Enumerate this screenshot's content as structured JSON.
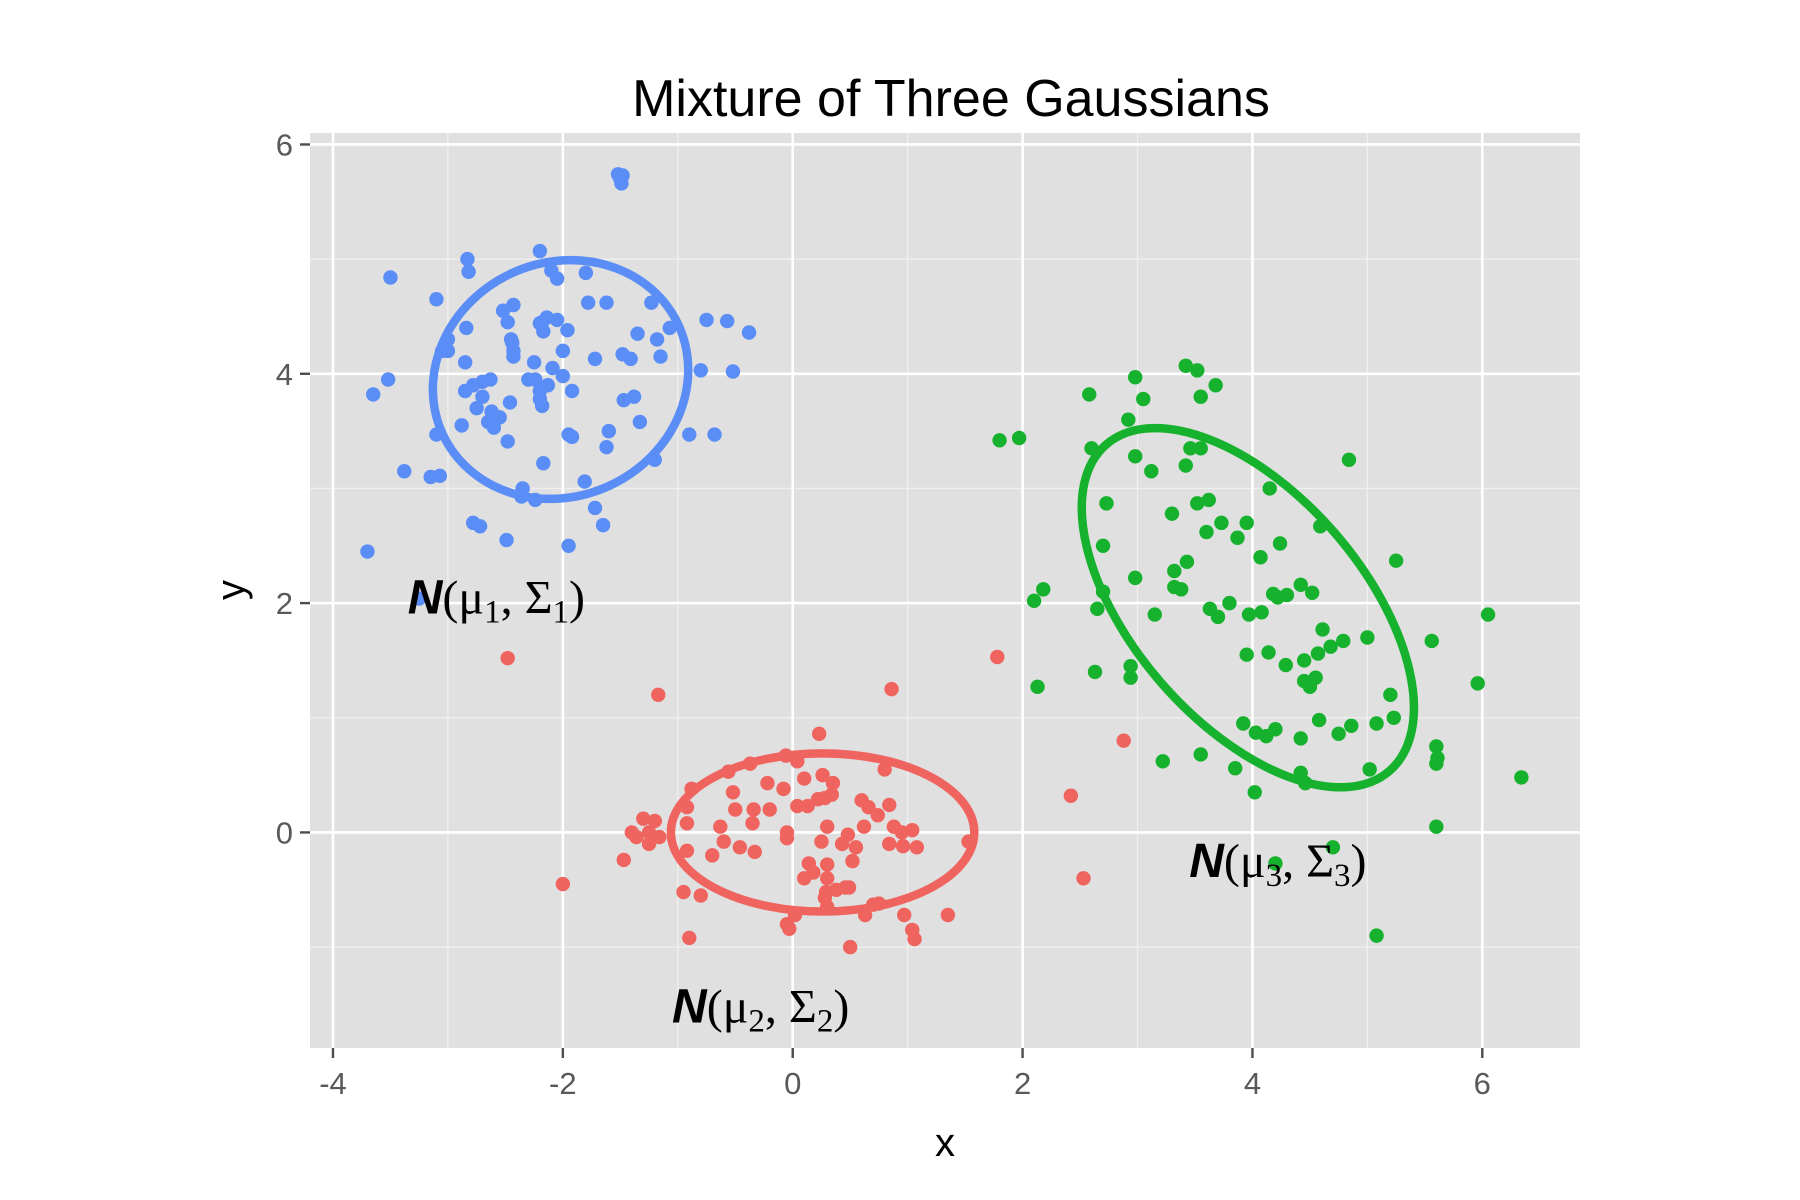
{
  "chart_data": {
    "type": "scatter",
    "title": "Mixture of Three Gaussians",
    "xlabel": "x",
    "ylabel": "y",
    "xlim": [
      -4.2,
      6.85
    ],
    "ylim": [
      -1.88,
      6.1
    ],
    "xticks": [
      -4,
      -2,
      0,
      2,
      4,
      6
    ],
    "xtick_labels": [
      "-4",
      "-2",
      "0",
      "2",
      "4",
      "6"
    ],
    "yticks": [
      0,
      2,
      4,
      6
    ],
    "ytick_labels": [
      "0",
      "2",
      "4",
      "6"
    ],
    "grid": true,
    "legend": "none",
    "colors": {
      "component_1": "#5A8DF5",
      "component_2": "#F0645F",
      "component_3": "#16B22E",
      "panel_background": "#E0E0E0",
      "grid_major": "#FFFFFF"
    },
    "ellipses": [
      {
        "series": "component_1",
        "center": [
          -2.02,
          3.95
        ],
        "semi_axes": [
          1.13,
          1.02
        ],
        "angle_deg": 25
      },
      {
        "series": "component_2",
        "center": [
          0.26,
          0.0
        ],
        "semi_axes": [
          1.32,
          0.69
        ],
        "angle_deg": 0
      },
      {
        "series": "component_3",
        "center": [
          3.96,
          1.96
        ],
        "semi_axes": [
          1.88,
          1.0
        ],
        "angle_deg": -49
      }
    ],
    "annotations": [
      {
        "n": "N",
        "mu": "μ",
        "mu_sub": "1",
        "sigma": "Σ",
        "sigma_sub": "1",
        "x": -3.35,
        "y": 2.05
      },
      {
        "n": "N",
        "mu": "μ",
        "mu_sub": "2",
        "sigma": "Σ",
        "sigma_sub": "2",
        "x": -1.05,
        "y": -1.52
      },
      {
        "n": "N",
        "mu": "μ",
        "mu_sub": "3",
        "sigma": "Σ",
        "sigma_sub": "3",
        "x": 3.45,
        "y": -0.25
      }
    ],
    "series": [
      {
        "id": "component_1",
        "points": [
          [
            -1.5,
            5.7
          ],
          [
            -1.48,
            5.73
          ],
          [
            -1.52,
            5.74
          ],
          [
            -1.49,
            5.66
          ],
          [
            -2.2,
            5.07
          ],
          [
            -2.83,
            5.0
          ],
          [
            -2.82,
            4.89
          ],
          [
            -3.5,
            4.84
          ],
          [
            -2.05,
            4.83
          ],
          [
            -2.1,
            4.9
          ],
          [
            -1.8,
            4.88
          ],
          [
            -1.62,
            4.62
          ],
          [
            -1.78,
            4.62
          ],
          [
            -2.52,
            4.55
          ],
          [
            -2.43,
            4.6
          ],
          [
            -3.1,
            4.65
          ],
          [
            -2.14,
            4.49
          ],
          [
            -2.05,
            4.47
          ],
          [
            -2.18,
            4.45
          ],
          [
            -2.2,
            4.44
          ],
          [
            -2.48,
            4.45
          ],
          [
            -2.45,
            4.3
          ],
          [
            -2.84,
            4.4
          ],
          [
            -3.0,
            4.3
          ],
          [
            -2.17,
            4.37
          ],
          [
            -1.96,
            4.38
          ],
          [
            -2.44,
            4.27
          ],
          [
            -1.35,
            4.35
          ],
          [
            -1.23,
            4.62
          ],
          [
            -1.07,
            4.4
          ],
          [
            -1.18,
            4.3
          ],
          [
            -0.75,
            4.47
          ],
          [
            -0.57,
            4.46
          ],
          [
            -0.38,
            4.36
          ],
          [
            -3.0,
            4.2
          ],
          [
            -3.05,
            4.2
          ],
          [
            -2.43,
            4.2
          ],
          [
            -2.0,
            4.2
          ],
          [
            -1.72,
            4.13
          ],
          [
            -1.48,
            4.17
          ],
          [
            -1.41,
            4.13
          ],
          [
            -1.15,
            4.15
          ],
          [
            -0.8,
            4.03
          ],
          [
            -0.52,
            4.02
          ],
          [
            -2.43,
            4.15
          ],
          [
            -2.25,
            4.1
          ],
          [
            -2.09,
            4.05
          ],
          [
            -2.85,
            4.1
          ],
          [
            -3.52,
            3.95
          ],
          [
            -3.65,
            3.82
          ],
          [
            -2.7,
            3.93
          ],
          [
            -2.63,
            3.95
          ],
          [
            -2.3,
            3.95
          ],
          [
            -2.24,
            3.95
          ],
          [
            -2.2,
            3.85
          ],
          [
            -2.13,
            3.9
          ],
          [
            -2.0,
            3.98
          ],
          [
            -2.85,
            3.85
          ],
          [
            -2.7,
            3.8
          ],
          [
            -2.78,
            3.9
          ],
          [
            -1.92,
            3.85
          ],
          [
            -1.47,
            3.77
          ],
          [
            -1.38,
            3.8
          ],
          [
            -2.2,
            3.78
          ],
          [
            -2.18,
            3.72
          ],
          [
            -2.46,
            3.75
          ],
          [
            -2.62,
            3.67
          ],
          [
            -2.75,
            3.7
          ],
          [
            -2.55,
            3.62
          ],
          [
            -2.65,
            3.58
          ],
          [
            -2.6,
            3.53
          ],
          [
            -2.88,
            3.55
          ],
          [
            -3.1,
            3.47
          ],
          [
            -1.95,
            3.47
          ],
          [
            -1.92,
            3.45
          ],
          [
            -1.6,
            3.5
          ],
          [
            -1.33,
            3.58
          ],
          [
            -0.9,
            3.47
          ],
          [
            -0.68,
            3.47
          ],
          [
            -2.48,
            3.41
          ],
          [
            -1.62,
            3.36
          ],
          [
            -3.38,
            3.15
          ],
          [
            -3.15,
            3.1
          ],
          [
            -3.07,
            3.11
          ],
          [
            -2.17,
            3.22
          ],
          [
            -1.2,
            3.25
          ],
          [
            -2.35,
            3.0
          ],
          [
            -2.36,
            2.93
          ],
          [
            -2.24,
            2.9
          ],
          [
            -1.81,
            3.06
          ],
          [
            -1.72,
            2.83
          ],
          [
            -1.65,
            2.68
          ],
          [
            -2.78,
            2.7
          ],
          [
            -2.72,
            2.67
          ],
          [
            -2.49,
            2.55
          ],
          [
            -1.95,
            2.5
          ],
          [
            -3.7,
            2.45
          ],
          [
            -3.25,
            2.04
          ]
        ]
      },
      {
        "id": "component_2",
        "points": [
          [
            -2.48,
            1.52
          ],
          [
            -1.17,
            1.2
          ],
          [
            0.86,
            1.25
          ],
          [
            1.78,
            1.53
          ],
          [
            0.23,
            0.86
          ],
          [
            -0.06,
            0.67
          ],
          [
            0.04,
            0.62
          ],
          [
            -0.37,
            0.6
          ],
          [
            -0.56,
            0.53
          ],
          [
            0.1,
            0.47
          ],
          [
            0.26,
            0.5
          ],
          [
            0.35,
            0.43
          ],
          [
            0.8,
            0.55
          ],
          [
            -0.22,
            0.43
          ],
          [
            -0.08,
            0.38
          ],
          [
            -0.52,
            0.35
          ],
          [
            -0.88,
            0.38
          ],
          [
            0.34,
            0.33
          ],
          [
            0.22,
            0.29
          ],
          [
            0.28,
            0.3
          ],
          [
            0.6,
            0.28
          ],
          [
            0.84,
            0.24
          ],
          [
            0.04,
            0.23
          ],
          [
            0.13,
            0.23
          ],
          [
            0.66,
            0.22
          ],
          [
            0.74,
            0.15
          ],
          [
            -0.5,
            0.2
          ],
          [
            -0.34,
            0.2
          ],
          [
            -0.2,
            0.2
          ],
          [
            -0.92,
            0.22
          ],
          [
            -1.3,
            0.12
          ],
          [
            -1.25,
            0.0
          ],
          [
            -1.2,
            0.1
          ],
          [
            -1.25,
            -0.1
          ],
          [
            -0.92,
            0.08
          ],
          [
            -0.63,
            0.05
          ],
          [
            -0.35,
            0.08
          ],
          [
            -0.05,
            0.0
          ],
          [
            0.3,
            0.05
          ],
          [
            0.48,
            -0.02
          ],
          [
            0.62,
            0.05
          ],
          [
            0.88,
            0.05
          ],
          [
            0.95,
            0.0
          ],
          [
            1.04,
            0.02
          ],
          [
            1.53,
            -0.08
          ],
          [
            -1.36,
            -0.04
          ],
          [
            -1.4,
            0.0
          ],
          [
            -1.16,
            -0.04
          ],
          [
            -0.6,
            -0.08
          ],
          [
            -0.46,
            -0.13
          ],
          [
            -0.05,
            -0.05
          ],
          [
            0.25,
            -0.08
          ],
          [
            0.43,
            -0.1
          ],
          [
            0.55,
            -0.13
          ],
          [
            0.84,
            -0.1
          ],
          [
            0.96,
            -0.12
          ],
          [
            1.08,
            -0.13
          ],
          [
            -1.47,
            -0.24
          ],
          [
            -0.92,
            -0.16
          ],
          [
            -0.7,
            -0.2
          ],
          [
            -0.33,
            -0.17
          ],
          [
            0.14,
            -0.27
          ],
          [
            0.3,
            -0.28
          ],
          [
            0.52,
            -0.25
          ],
          [
            0.18,
            -0.35
          ],
          [
            0.3,
            -0.4
          ],
          [
            0.1,
            -0.4
          ],
          [
            0.38,
            -0.5
          ],
          [
            0.46,
            -0.48
          ],
          [
            -2.0,
            -0.45
          ],
          [
            -0.95,
            -0.52
          ],
          [
            0.29,
            -0.52
          ],
          [
            0.28,
            -0.57
          ],
          [
            0.49,
            -0.48
          ],
          [
            0.7,
            -0.63
          ],
          [
            0.75,
            -0.62
          ],
          [
            -0.8,
            -0.55
          ],
          [
            0.3,
            -0.65
          ],
          [
            1.35,
            -0.72
          ],
          [
            0.02,
            -0.72
          ],
          [
            0.63,
            -0.72
          ],
          [
            0.97,
            -0.72
          ],
          [
            -0.05,
            -0.8
          ],
          [
            -0.03,
            -0.84
          ],
          [
            1.04,
            -0.85
          ],
          [
            1.06,
            -0.93
          ],
          [
            -0.9,
            -0.92
          ],
          [
            0.5,
            -1.0
          ],
          [
            2.42,
            0.32
          ],
          [
            2.88,
            0.8
          ],
          [
            2.53,
            -0.4
          ]
        ]
      },
      {
        "id": "component_3",
        "points": [
          [
            3.42,
            4.07
          ],
          [
            3.52,
            4.03
          ],
          [
            2.98,
            3.97
          ],
          [
            2.58,
            3.82
          ],
          [
            3.05,
            3.78
          ],
          [
            3.55,
            3.8
          ],
          [
            1.8,
            3.42
          ],
          [
            1.97,
            3.44
          ],
          [
            2.6,
            3.35
          ],
          [
            2.92,
            3.6
          ],
          [
            3.55,
            3.35
          ],
          [
            2.98,
            3.28
          ],
          [
            3.12,
            3.15
          ],
          [
            3.42,
            3.2
          ],
          [
            4.84,
            3.25
          ],
          [
            3.68,
            3.9
          ],
          [
            3.46,
            3.35
          ],
          [
            2.73,
            2.87
          ],
          [
            3.3,
            2.78
          ],
          [
            3.52,
            2.87
          ],
          [
            3.62,
            2.9
          ],
          [
            3.6,
            2.62
          ],
          [
            3.73,
            2.7
          ],
          [
            3.87,
            2.57
          ],
          [
            3.95,
            2.7
          ],
          [
            4.15,
            3.0
          ],
          [
            4.59,
            2.67
          ],
          [
            3.32,
            2.28
          ],
          [
            3.43,
            2.36
          ],
          [
            2.7,
            2.5
          ],
          [
            2.98,
            2.22
          ],
          [
            3.32,
            2.14
          ],
          [
            3.38,
            2.12
          ],
          [
            4.07,
            2.4
          ],
          [
            4.24,
            2.52
          ],
          [
            4.18,
            2.08
          ],
          [
            4.22,
            2.05
          ],
          [
            4.3,
            2.07
          ],
          [
            4.42,
            2.16
          ],
          [
            4.52,
            2.09
          ],
          [
            5.25,
            2.37
          ],
          [
            2.18,
            2.12
          ],
          [
            2.1,
            2.02
          ],
          [
            2.7,
            2.1
          ],
          [
            2.65,
            1.95
          ],
          [
            3.15,
            1.9
          ],
          [
            3.63,
            1.95
          ],
          [
            3.7,
            1.88
          ],
          [
            3.8,
            2.0
          ],
          [
            3.97,
            1.9
          ],
          [
            4.08,
            1.92
          ],
          [
            4.61,
            1.77
          ],
          [
            4.68,
            1.62
          ],
          [
            4.79,
            1.67
          ],
          [
            5.0,
            1.7
          ],
          [
            5.56,
            1.67
          ],
          [
            6.05,
            1.9
          ],
          [
            3.95,
            1.55
          ],
          [
            4.14,
            1.57
          ],
          [
            4.29,
            1.46
          ],
          [
            4.45,
            1.5
          ],
          [
            4.57,
            1.56
          ],
          [
            4.45,
            1.32
          ],
          [
            4.55,
            1.35
          ],
          [
            4.5,
            1.27
          ],
          [
            2.94,
            1.45
          ],
          [
            2.63,
            1.4
          ],
          [
            2.94,
            1.35
          ],
          [
            2.13,
            1.27
          ],
          [
            5.2,
            1.2
          ],
          [
            5.23,
            1.0
          ],
          [
            5.96,
            1.3
          ],
          [
            3.92,
            0.95
          ],
          [
            4.03,
            0.87
          ],
          [
            4.12,
            0.84
          ],
          [
            4.2,
            0.9
          ],
          [
            4.42,
            0.82
          ],
          [
            4.58,
            0.98
          ],
          [
            4.75,
            0.86
          ],
          [
            4.86,
            0.93
          ],
          [
            5.08,
            0.95
          ],
          [
            5.6,
            0.75
          ],
          [
            5.61,
            0.65
          ],
          [
            5.6,
            0.6
          ],
          [
            6.34,
            0.48
          ],
          [
            3.22,
            0.62
          ],
          [
            3.55,
            0.68
          ],
          [
            3.85,
            0.56
          ],
          [
            4.42,
            0.52
          ],
          [
            4.46,
            0.43
          ],
          [
            5.02,
            0.55
          ],
          [
            4.02,
            0.35
          ],
          [
            4.7,
            -0.13
          ],
          [
            4.2,
            -0.27
          ],
          [
            5.6,
            0.05
          ],
          [
            5.08,
            -0.9
          ]
        ]
      }
    ]
  }
}
